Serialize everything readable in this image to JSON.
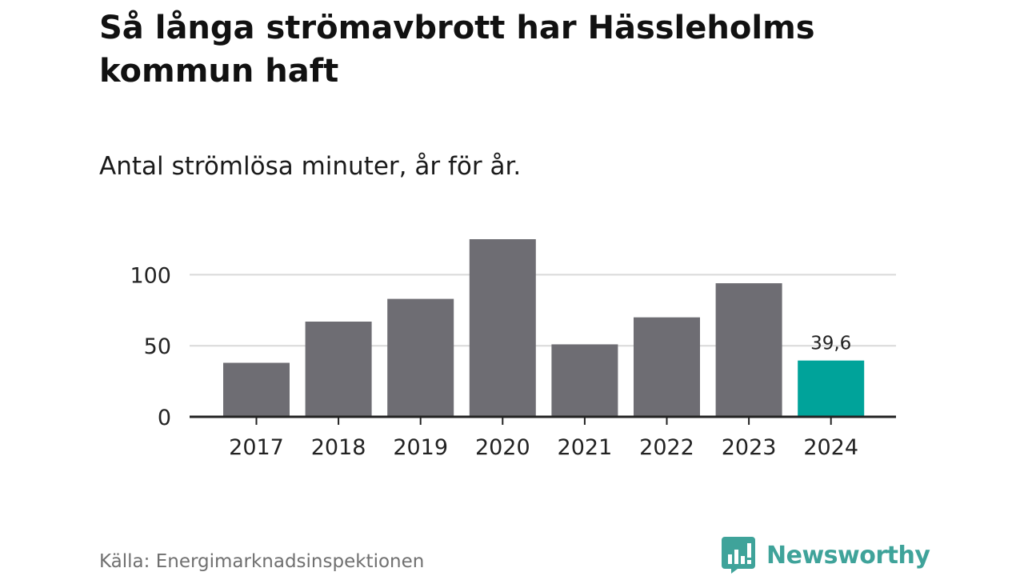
{
  "title": "Så långa strömavbrott har Hässleholms kommun haft",
  "subtitle": "Antal strömlösa minuter, år för år.",
  "source": "Källa: Energimarknadsinspektionen",
  "brand": "Newsworthy",
  "colors": {
    "bar": "#6e6d73",
    "highlight": "#00a39a",
    "grid": "#d9d9d9",
    "axis": "#222222",
    "brand": "#3fa39a"
  },
  "chart_data": {
    "type": "bar",
    "title": "Så långa strömavbrott har Hässleholms kommun haft",
    "subtitle": "Antal strömlösa minuter, år för år.",
    "categories": [
      "2017",
      "2018",
      "2019",
      "2020",
      "2021",
      "2022",
      "2023",
      "2024"
    ],
    "values": [
      38,
      67,
      83,
      125,
      51,
      70,
      94,
      39.6
    ],
    "highlight_index": 7,
    "data_labels": [
      {
        "index": 7,
        "text": "39,6"
      }
    ],
    "yticks": [
      0,
      50,
      100
    ],
    "ylim": [
      0,
      125
    ],
    "xlabel": "",
    "ylabel": "",
    "grid": true
  }
}
